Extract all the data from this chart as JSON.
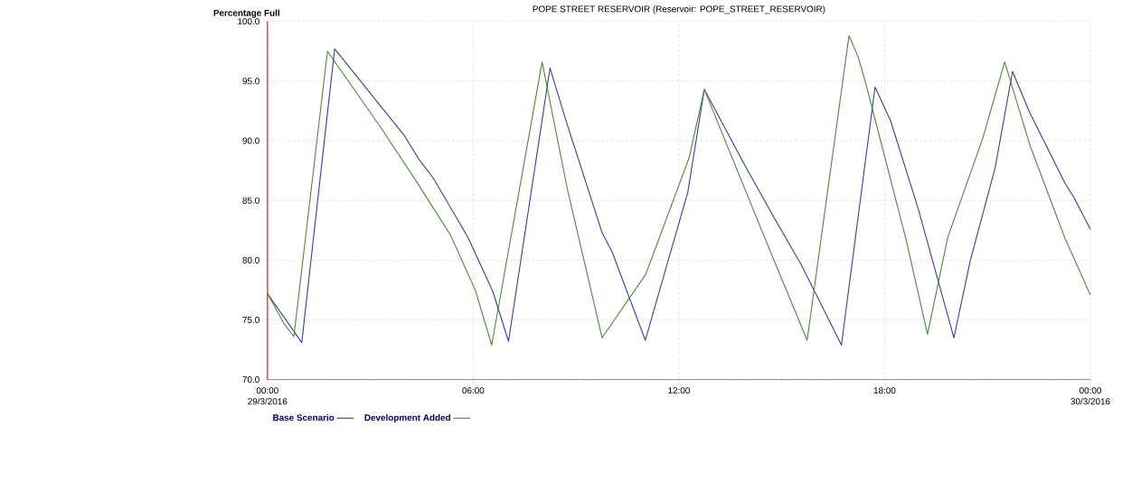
{
  "chart_data": {
    "type": "line",
    "title": "POPE STREET RESERVOIR (Reservoir: POPE_STREET_RESERVOIR)",
    "ylabel": "Percentage Full",
    "xlim": [
      0,
      24
    ],
    "ylim": [
      70,
      100
    ],
    "xticks": [
      {
        "value": 0,
        "label": "00:00 29/3/2016"
      },
      {
        "value": 6,
        "label": "06:00"
      },
      {
        "value": 12,
        "label": "12:00"
      },
      {
        "value": 18,
        "label": "18:00"
      },
      {
        "value": 24,
        "label": "00:00 30/3/2016"
      }
    ],
    "yticks": [
      {
        "value": 70,
        "label": "70.0"
      },
      {
        "value": 75,
        "label": "75.0"
      },
      {
        "value": 80,
        "label": "80.0"
      },
      {
        "value": 85,
        "label": "85.0"
      },
      {
        "value": 90,
        "label": "90.0"
      },
      {
        "value": 95,
        "label": "95.0"
      },
      {
        "value": 100,
        "label": "100.0"
      }
    ],
    "grid": true,
    "legend": "bottom left",
    "series": [
      {
        "name": "Base Scenario",
        "color": "#3c3ca0",
        "x": [
          0,
          1.0,
          1.96,
          4.0,
          4.43,
          4.83,
          5.85,
          6.57,
          7.03,
          8.24,
          8.75,
          9.76,
          10.05,
          11.02,
          12.26,
          12.74,
          13.97,
          14.77,
          15.57,
          16.74,
          17.72,
          18.17,
          18.97,
          20.02,
          20.5,
          21.22,
          21.73,
          22.24,
          23.25,
          23.53,
          24.0
        ],
        "values": [
          77.2,
          73.1,
          97.7,
          90.4,
          88.4,
          86.9,
          81.9,
          77.4,
          73.2,
          96.1,
          91.3,
          82.3,
          80.7,
          73.3,
          85.7,
          94.3,
          87.7,
          83.6,
          79.6,
          72.9,
          94.5,
          91.7,
          84.4,
          73.5,
          80.0,
          87.7,
          95.8,
          92.3,
          86.5,
          85.2,
          82.6
        ]
      },
      {
        "name": "Development Added",
        "color": "#4a8a3c",
        "x": [
          0,
          0.48,
          0.77,
          1.75,
          3.31,
          4.32,
          5.34,
          6.06,
          6.54,
          8.01,
          8.75,
          9.76,
          11.03,
          12.3,
          12.74,
          14.77,
          15.74,
          16.96,
          17.23,
          17.45,
          18.61,
          19.25,
          19.84,
          20.86,
          21.22,
          21.5,
          22.24,
          23.25,
          24.0
        ],
        "values": [
          77.2,
          74.7,
          73.6,
          97.5,
          91.1,
          86.7,
          82.1,
          77.5,
          72.9,
          96.6,
          85.9,
          73.5,
          78.8,
          88.6,
          94.3,
          80.0,
          73.3,
          98.8,
          97.0,
          94.8,
          81.9,
          73.8,
          81.9,
          90.2,
          93.8,
          96.6,
          89.6,
          81.9,
          77.1
        ]
      }
    ]
  }
}
